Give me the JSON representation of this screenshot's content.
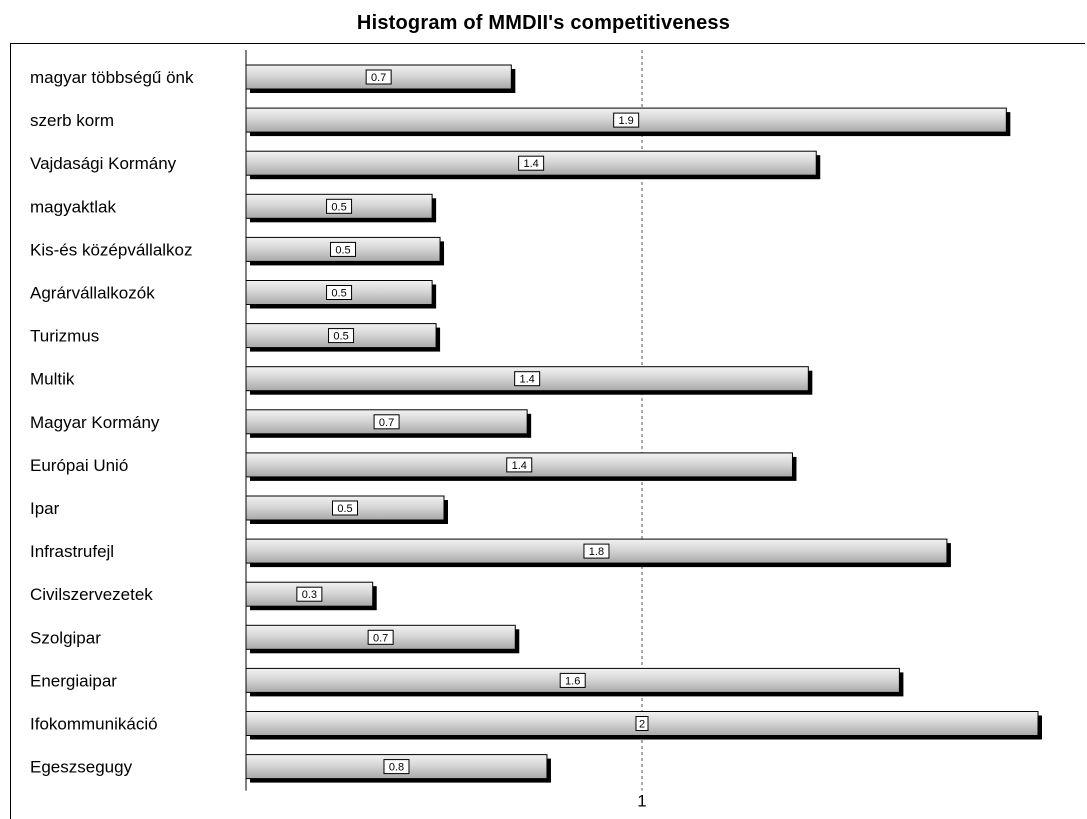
{
  "chart_data": {
    "type": "bar",
    "orientation": "horizontal",
    "title": "Histogram of MMDII's competitiveness",
    "categories": [
      "magyar többségű önk",
      "szerb korm",
      "Vajdasági Kormány",
      "magyaktlak",
      "Kis-és középvállalkoz",
      "Agrárvállalkozók",
      "Turizmus",
      "Multik",
      "Magyar Kormány",
      "Európai Unió",
      "Ipar",
      "Infrastrufejl",
      "Civilszervezetek",
      "Szolgipar",
      "Energiaipar",
      "Ifokommunikáció",
      "Egeszsegugy"
    ],
    "values": [
      0.67,
      1.92,
      1.44,
      0.47,
      0.49,
      0.47,
      0.48,
      1.42,
      0.71,
      1.38,
      0.5,
      1.77,
      0.32,
      0.68,
      1.65,
      2.0,
      0.76
    ],
    "value_labels": [
      "0.7",
      "1.9",
      "1.4",
      "0.5",
      "0.5",
      "0.5",
      "0.5",
      "1.4",
      "0.7",
      "1.4",
      "0.5",
      "1.8",
      "0.3",
      "0.7",
      "1.6",
      "2",
      "0.8"
    ],
    "reference_line": 1,
    "x_ticks": [
      1
    ],
    "x_tick_labels": [
      "1"
    ],
    "xlim": [
      0,
      2.0
    ],
    "xlabel": "",
    "ylabel": "",
    "grid": false,
    "legend": "none",
    "colors": {
      "bar_light": "#f2f2f2",
      "bar_mid": "#d6d6d6",
      "bar_dark": "#a8a8a8",
      "bar_border": "#000000",
      "shadow": "#000000",
      "reference_line": "#555555"
    }
  }
}
